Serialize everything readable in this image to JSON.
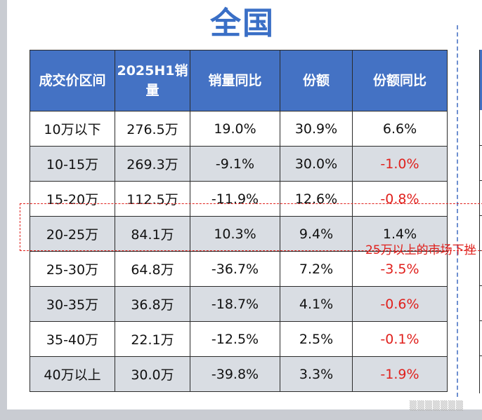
{
  "title": "全国",
  "table": {
    "headers": [
      "成交价区间",
      "2025H1销量",
      "销量同比",
      "份额",
      "份额同比"
    ],
    "rows": [
      [
        "10万以下",
        "276.5万",
        "19.0%",
        "30.9%",
        "6.6%"
      ],
      [
        "10-15万",
        "269.3万",
        "-9.1%",
        "30.0%",
        "-1.0%"
      ],
      [
        "15-20万",
        "112.5万",
        "-11.9%",
        "12.6%",
        "-0.8%"
      ],
      [
        "20-25万",
        "84.1万",
        "10.3%",
        "9.4%",
        "1.4%"
      ],
      [
        "25-30万",
        "64.8万",
        "-36.7%",
        "7.2%",
        "-3.5%"
      ],
      [
        "30-35万",
        "36.8万",
        "-18.7%",
        "4.1%",
        "-0.6%"
      ],
      [
        "35-40万",
        "22.1万",
        "-12.5%",
        "2.5%",
        "-0.1%"
      ],
      [
        "40万以上",
        "30.0万",
        "-39.8%",
        "3.3%",
        "-1.9%"
      ]
    ]
  },
  "annotation": {
    "text": "25万以上的市场下挫"
  },
  "colors": {
    "title": "#3a6fc6",
    "header_bg": "#4472c4",
    "row_alt_bg": "#d9dde3",
    "negative_text": "#e0201c",
    "annotation": "#e0201c"
  }
}
